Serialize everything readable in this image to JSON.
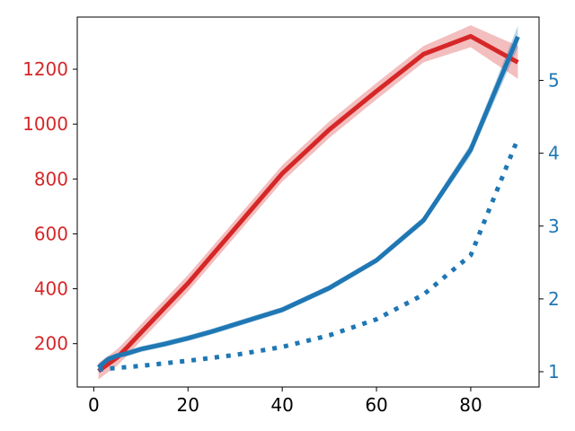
{
  "chart_data": {
    "type": "line",
    "title": "",
    "xlabel": "",
    "ylabel_left": "",
    "ylabel_right": "",
    "grid": false,
    "colors": {
      "left_axis": "#d62728",
      "right_axis": "#1f77b4",
      "frame": "#000000"
    },
    "x_ticks": [
      0,
      20,
      40,
      60,
      80
    ],
    "y_left_ticks": [
      200,
      400,
      600,
      800,
      1000,
      1200
    ],
    "y_right_ticks": [
      1,
      2,
      3,
      4,
      5
    ],
    "xlim": [
      -3.5,
      94.5
    ],
    "ylim_left": [
      42,
      1390
    ],
    "ylim_right": [
      0.79,
      5.87
    ],
    "series": [
      {
        "axis": "left",
        "style": "solid",
        "color": "#d62728",
        "x": [
          1,
          3,
          5,
          7,
          10,
          15,
          20,
          30,
          40,
          50,
          60,
          70,
          80,
          90
        ],
        "y": [
          100,
          125,
          150,
          185,
          240,
          330,
          420,
          620,
          820,
          980,
          1120,
          1255,
          1320,
          1225
        ],
        "band": [
          30,
          30,
          30,
          30,
          30,
          30,
          30,
          30,
          30,
          30,
          30,
          30,
          40,
          60
        ]
      },
      {
        "axis": "right",
        "style": "solid",
        "color": "#1f77b4",
        "x": [
          1,
          3,
          5,
          7,
          10,
          15,
          20,
          25,
          30,
          40,
          50,
          60,
          70,
          80,
          90
        ],
        "y": [
          1.06,
          1.17,
          1.22,
          1.25,
          1.31,
          1.38,
          1.46,
          1.55,
          1.65,
          1.85,
          2.15,
          2.53,
          3.08,
          4.05,
          5.6
        ],
        "band": [
          0.04,
          0.04,
          0.04,
          0.04,
          0.04,
          0.04,
          0.04,
          0.04,
          0.04,
          0.04,
          0.04,
          0.04,
          0.05,
          0.08,
          0.15
        ]
      },
      {
        "axis": "right",
        "style": "dotted",
        "color": "#1f77b4",
        "x": [
          1,
          10,
          20,
          30,
          40,
          50,
          60,
          70,
          80,
          90
        ],
        "y": [
          1.03,
          1.08,
          1.15,
          1.23,
          1.34,
          1.5,
          1.72,
          2.06,
          2.6,
          4.2
        ]
      }
    ]
  }
}
